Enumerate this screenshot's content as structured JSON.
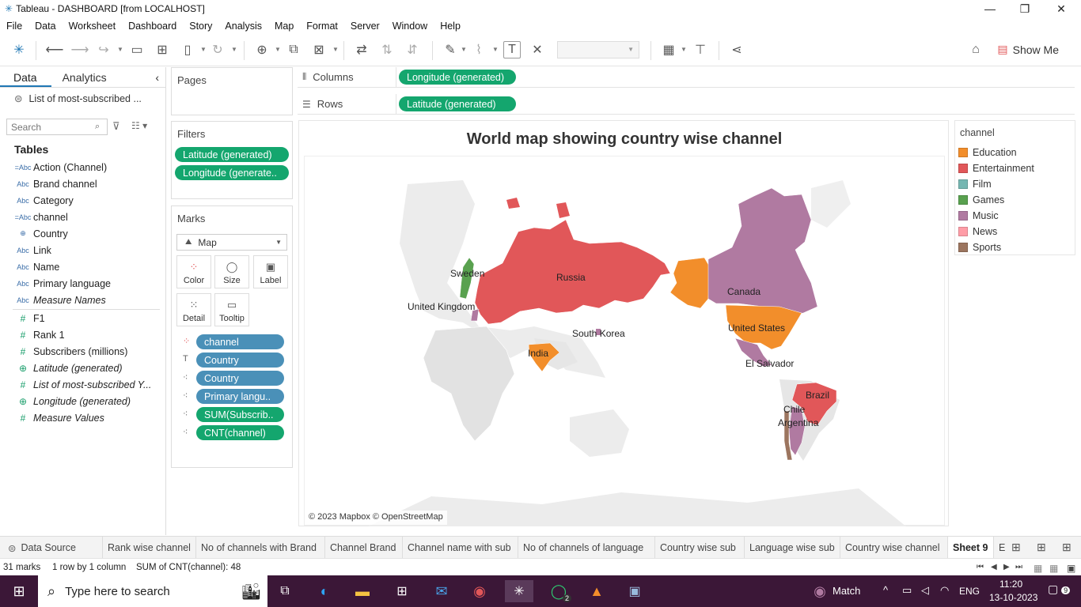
{
  "window": {
    "title": "Tableau - DASHBOARD [from LOCALHOST]",
    "minimize": "—",
    "restore": "❐",
    "close": "✕"
  },
  "menu": [
    "File",
    "Data",
    "Worksheet",
    "Dashboard",
    "Story",
    "Analysis",
    "Map",
    "Format",
    "Server",
    "Window",
    "Help"
  ],
  "toolbar": {
    "show_me": "Show Me"
  },
  "left_pane": {
    "tabs": [
      "Data",
      "Analytics"
    ],
    "datasource": "List of most-subscribed ...",
    "search_placeholder": "Search",
    "tables_header": "Tables",
    "fields": [
      {
        "icon": "=Abc",
        "label": "Action (Channel)",
        "kind": "dim",
        "italic": false
      },
      {
        "icon": "Abc",
        "label": "Brand channel",
        "kind": "dim",
        "italic": false
      },
      {
        "icon": "Abc",
        "label": "Category",
        "kind": "dim",
        "italic": false
      },
      {
        "icon": "=Abc",
        "label": "channel",
        "kind": "dim",
        "italic": false
      },
      {
        "icon": "⊕",
        "label": "Country",
        "kind": "geo",
        "italic": false
      },
      {
        "icon": "Abc",
        "label": "Link",
        "kind": "dim",
        "italic": false
      },
      {
        "icon": "Abc",
        "label": "Name",
        "kind": "dim",
        "italic": false
      },
      {
        "icon": "Abc",
        "label": "Primary language",
        "kind": "dim",
        "italic": false
      },
      {
        "icon": "Abc",
        "label": "Measure Names",
        "kind": "dim",
        "italic": true
      },
      {
        "icon": "#",
        "label": "F1",
        "kind": "meas",
        "italic": false
      },
      {
        "icon": "#",
        "label": "Rank 1",
        "kind": "meas",
        "italic": false
      },
      {
        "icon": "#",
        "label": "Subscribers (millions)",
        "kind": "meas",
        "italic": false
      },
      {
        "icon": "⊕",
        "label": "Latitude (generated)",
        "kind": "geom",
        "italic": true
      },
      {
        "icon": "#",
        "label": "List of most-subscribed Y...",
        "kind": "meas",
        "italic": true
      },
      {
        "icon": "⊕",
        "label": "Longitude (generated)",
        "kind": "geom",
        "italic": true
      },
      {
        "icon": "#",
        "label": "Measure Values",
        "kind": "meas",
        "italic": true
      }
    ]
  },
  "pages": {
    "title": "Pages"
  },
  "filters": {
    "title": "Filters",
    "pills": [
      "Latitude (generated)",
      "Longitude (generate.."
    ]
  },
  "marks": {
    "title": "Marks",
    "type": "Map",
    "buttons": [
      "Color",
      "Size",
      "Label",
      "Detail",
      "Tooltip"
    ],
    "pills": [
      {
        "icon": "color",
        "label": "channel",
        "color": "blue"
      },
      {
        "icon": "T",
        "label": "Country",
        "color": "blue"
      },
      {
        "icon": "detail",
        "label": "Country",
        "color": "blue"
      },
      {
        "icon": "detail",
        "label": "Primary langu..",
        "color": "blue"
      },
      {
        "icon": "detail",
        "label": "SUM(Subscrib..",
        "color": "green"
      },
      {
        "icon": "detail",
        "label": "CNT(channel)",
        "color": "green"
      }
    ]
  },
  "shelves": {
    "columns_label": "Columns",
    "columns_pill": "Longitude (generated)",
    "rows_label": "Rows",
    "rows_pill": "Latitude (generated)"
  },
  "viz": {
    "title": "World map showing country wise channel",
    "attribution": "© 2023 Mapbox © OpenStreetMap",
    "country_labels": [
      "Russia",
      "Sweden",
      "United Kingdom",
      "South Korea",
      "India",
      "Canada",
      "United States",
      "El Salvador",
      "Brazil",
      "Chile",
      "Argentina"
    ]
  },
  "legend": {
    "title": "channel",
    "items": [
      {
        "label": "Education",
        "color": "#f28e2b"
      },
      {
        "label": "Entertainment",
        "color": "#e15759"
      },
      {
        "label": "Film",
        "color": "#76b7b2"
      },
      {
        "label": "Games",
        "color": "#59a14f"
      },
      {
        "label": "Music",
        "color": "#b07aa1"
      },
      {
        "label": "News",
        "color": "#ff9da7"
      },
      {
        "label": "Sports",
        "color": "#9c755f"
      }
    ]
  },
  "sheet_tabs": [
    "Data Source",
    "Rank wise channel",
    "No of channels with Brand",
    "Channel Brand",
    "Channel name with sub",
    "No of channels of language",
    "Country wise sub",
    "Language wise sub",
    "Country wise channel",
    "Sheet 9",
    "E"
  ],
  "status": {
    "marks": "31 marks",
    "rows": "1 row by 1 column",
    "sum": "SUM of CNT(channel): 48"
  },
  "taskbar": {
    "search_placeholder": "Type here to search",
    "weather": "Match",
    "lang": "ENG",
    "time": "11:20",
    "date": "13-10-2023",
    "notif": "9",
    "whatsapp_badge": "2"
  }
}
